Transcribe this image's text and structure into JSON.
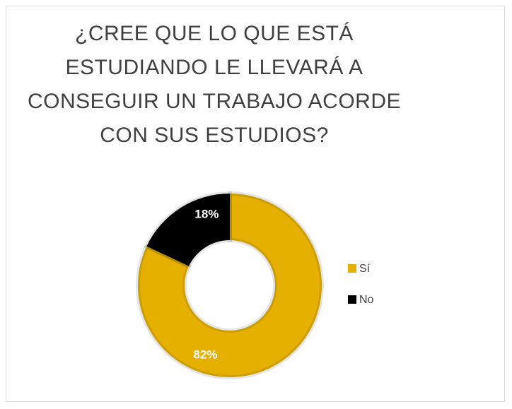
{
  "chart_data": {
    "type": "donut",
    "title": "¿CREE QUE LO QUE ESTÁ ESTUDIANDO LE LLEVARÁ A CONSEGUIR UN TRABAJO ACORDE CON SUS ESTUDIOS?",
    "categories": [
      "Sí",
      "No"
    ],
    "values": [
      82,
      18
    ],
    "value_labels": [
      "82%",
      "18%"
    ],
    "colors": [
      "#e5b000",
      "#000000"
    ],
    "legend": "right"
  }
}
